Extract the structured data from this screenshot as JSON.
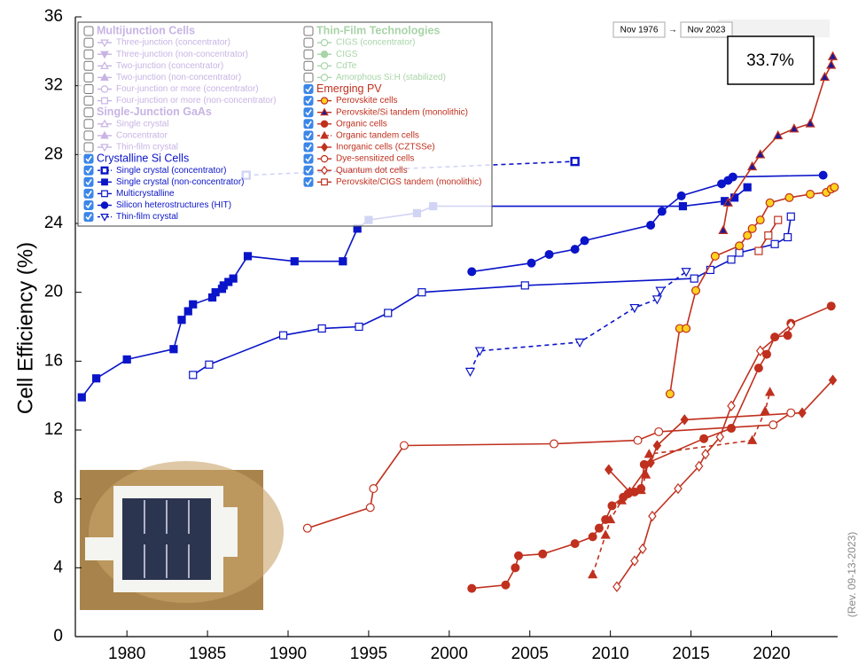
{
  "chart_data": {
    "type": "line",
    "y_label": "Cell Efficiency (%)",
    "revision": "(Rev. 09-13-2023)",
    "range_start": "Nov 1976",
    "range_arrow": "→",
    "range_end": "Nov 2023",
    "record_label": "33.7%",
    "xlim": [
      1976.8,
      2024.1
    ],
    "ylim": [
      0,
      36
    ],
    "xticks": [
      1980,
      1985,
      1990,
      1995,
      2000,
      2005,
      2010,
      2015,
      2020
    ],
    "yticks": [
      0,
      4,
      8,
      12,
      16,
      20,
      24,
      28,
      32,
      36
    ],
    "groups": [
      {
        "name": "Multijunction Cells",
        "color": "#c8b4e4",
        "checked": false,
        "series": [
          {
            "name": "Three-junction (concentrator)",
            "marker": "triangle-down-open",
            "color": "#c8b4e4",
            "x": [],
            "values": []
          },
          {
            "name": "Three-junction (non-concentrator)",
            "marker": "triangle-down",
            "color": "#c8b4e4",
            "x": [],
            "values": []
          },
          {
            "name": "Two-junction (concentrator)",
            "marker": "triangle-open",
            "color": "#c8b4e4",
            "x": [],
            "values": []
          },
          {
            "name": "Two-junction (non-concentrator)",
            "marker": "triangle",
            "color": "#c8b4e4",
            "x": [],
            "values": []
          },
          {
            "name": "Four-junction or more (concentrator)",
            "marker": "circle-open",
            "color": "#c8b4e4",
            "x": [],
            "values": []
          },
          {
            "name": "Four-junction or more (non-concentrator)",
            "marker": "square-open",
            "color": "#c8b4e4",
            "x": [],
            "values": []
          }
        ]
      },
      {
        "name": "Single-Junction GaAs",
        "color": "#c8b4e4",
        "checked": false,
        "series": [
          {
            "name": "Single crystal",
            "marker": "triangle-open",
            "color": "#c8b4e4",
            "x": [],
            "values": []
          },
          {
            "name": "Concentrator",
            "marker": "triangle",
            "color": "#c8b4e4",
            "x": [],
            "values": []
          },
          {
            "name": "Thin-film crystal",
            "marker": "triangle-down-open",
            "color": "#c8b4e4",
            "x": [],
            "values": []
          }
        ]
      },
      {
        "name": "Crystalline Si Cells",
        "color": "#0a14c8",
        "checked": true,
        "series": [
          {
            "name": "Single crystal (concentrator)",
            "marker": "square-dot",
            "color": "#0a14c8",
            "dashed": true,
            "x": [
              1987.4,
              2007.8
            ],
            "values": [
              26.8,
              27.6
            ]
          },
          {
            "name": "Single crystal (non-concentrator)",
            "marker": "square",
            "color": "#0a14c8",
            "x": [
              1977.2,
              1978.1,
              1980.0,
              1982.9,
              1983.4,
              1983.8,
              1984.1,
              1985.3,
              1985.5,
              1985.9,
              1986.0,
              1986.3,
              1986.6,
              1987.5,
              1990.4,
              1993.4,
              1994.3,
              1995.0,
              1998.0,
              1999.0,
              2014.5,
              2017.1,
              2017.7,
              2018.5
            ],
            "values": [
              13.9,
              15.0,
              16.1,
              16.7,
              18.4,
              18.9,
              19.3,
              19.7,
              20.0,
              20.2,
              20.4,
              20.6,
              20.8,
              22.1,
              21.8,
              21.8,
              23.7,
              24.2,
              24.6,
              25.0,
              25.0,
              25.3,
              25.5,
              26.1
            ]
          },
          {
            "name": "Multicrystalline",
            "marker": "square-open",
            "color": "#0a14c8",
            "x": [
              1984.1,
              1985.1,
              1989.7,
              1992.1,
              1994.4,
              1996.2,
              1998.3,
              2004.7,
              2015.2,
              2016.2,
              2017.5,
              2018.0,
              2020.2,
              2021.0,
              2021.2
            ],
            "values": [
              15.2,
              15.8,
              17.5,
              17.9,
              18.0,
              18.8,
              20.0,
              20.4,
              20.8,
              21.3,
              21.9,
              22.3,
              22.8,
              23.2,
              24.4
            ]
          },
          {
            "name": "Silicon heterostructures (HIT)",
            "marker": "circle",
            "color": "#0a14c8",
            "x": [
              2001.4,
              2005.1,
              2006.2,
              2007.8,
              2008.4,
              2012.5,
              2013.2,
              2014.4,
              2016.9,
              2017.3,
              2017.6,
              2023.2
            ],
            "values": [
              21.2,
              21.7,
              22.2,
              22.5,
              23.0,
              23.9,
              24.7,
              25.6,
              26.3,
              26.5,
              26.7,
              26.8
            ]
          },
          {
            "name": "Thin-film crystal",
            "marker": "triangle-down-open",
            "color": "#0a14c8",
            "dashed": true,
            "x": [
              2001.3,
              2001.9,
              2008.1,
              2011.5,
              2012.9,
              2013.1,
              2014.7
            ],
            "values": [
              15.4,
              16.6,
              17.1,
              19.1,
              19.6,
              20.1,
              21.2
            ]
          }
        ]
      },
      {
        "name": "Thin-Film Technologies",
        "color": "#a8d4a8",
        "checked": false,
        "series": [
          {
            "name": "CIGS (concentrator)",
            "marker": "circle-open",
            "color": "#a8d4a8",
            "x": [],
            "values": []
          },
          {
            "name": "CIGS",
            "marker": "circle",
            "color": "#a8d4a8",
            "x": [],
            "values": []
          },
          {
            "name": "CdTe",
            "marker": "circle-open",
            "color": "#a8d4a8",
            "x": [],
            "values": []
          },
          {
            "name": "Amorphous Si:H (stabilized)",
            "marker": "circle-open",
            "color": "#a8d4a8",
            "x": [],
            "values": []
          }
        ]
      },
      {
        "name": "Emerging PV",
        "color": "#c0301e",
        "checked": true,
        "series": [
          {
            "name": "Perovskite cells",
            "marker": "circle",
            "color": "#c0301e",
            "marker_fill": "#ffd21e",
            "x": [
              2013.7,
              2014.3,
              2014.7,
              2015.3,
              2016.5,
              2018.0,
              2018.5,
              2018.8,
              2019.3,
              2019.9,
              2021.1,
              2022.4,
              2023.4,
              2023.7,
              2023.9
            ],
            "values": [
              14.1,
              17.9,
              17.9,
              20.1,
              22.1,
              22.7,
              23.3,
              23.7,
              24.2,
              25.2,
              25.5,
              25.7,
              25.8,
              26.0,
              26.1
            ]
          },
          {
            "name": "Perovskite/Si tandem (monolithic)",
            "marker": "triangle",
            "color": "#c0301e",
            "marker_fill": "#1a1a9a",
            "x": [
              2017.0,
              2017.3,
              2018.8,
              2019.3,
              2020.4,
              2021.4,
              2022.4,
              2023.3,
              2023.7,
              2023.8
            ],
            "values": [
              23.6,
              25.2,
              27.3,
              28.0,
              29.1,
              29.5,
              29.8,
              32.5,
              33.2,
              33.7
            ]
          },
          {
            "name": "Organic cells",
            "marker": "circle",
            "color": "#c0301e",
            "x": [
              2001.4,
              2003.5,
              2004.1,
              2004.3,
              2005.8,
              2007.8,
              2008.9,
              2009.3,
              2009.7,
              2010.1,
              2010.8,
              2011.1,
              2011.5,
              2011.9,
              2012.1,
              2015.8,
              2017.5,
              2019.2,
              2019.7,
              2020.2,
              2021.0,
              2021.2,
              2023.7
            ],
            "values": [
              2.8,
              3.0,
              4.0,
              4.7,
              4.8,
              5.4,
              5.8,
              6.3,
              6.8,
              7.6,
              8.1,
              8.3,
              8.4,
              8.6,
              10.0,
              11.5,
              12.1,
              15.6,
              16.4,
              17.4,
              17.5,
              18.2,
              19.2
            ]
          },
          {
            "name": "Organic tandem cells",
            "marker": "triangle",
            "color": "#c0301e",
            "dashed": true,
            "x": [
              2008.9,
              2009.7,
              2010.0,
              2010.7,
              2011.9,
              2012.2,
              2012.4,
              2018.8,
              2019.6,
              2019.9
            ],
            "values": [
              3.6,
              5.9,
              6.8,
              7.9,
              8.5,
              9.4,
              10.6,
              11.4,
              13.1,
              14.2
            ]
          },
          {
            "name": "Inorganic cells (CZTSSe)",
            "marker": "diamond",
            "color": "#c0301e",
            "x": [
              2009.9,
              2011.2,
              2012.5,
              2012.9,
              2014.6,
              2021.9,
              2023.8
            ],
            "values": [
              9.7,
              8.4,
              10.1,
              11.1,
              12.6,
              13.0,
              14.9
            ]
          },
          {
            "name": "Dye-sensitized cells",
            "marker": "circle-open",
            "color": "#c0301e",
            "x": [
              1991.2,
              1995.1,
              1995.3,
              1997.2,
              2006.5,
              2011.7,
              2013.0,
              2020.1,
              2021.2
            ],
            "values": [
              6.3,
              7.5,
              8.6,
              11.1,
              11.2,
              11.4,
              11.9,
              12.3,
              13.0
            ]
          },
          {
            "name": "Quantum dot cells",
            "marker": "diamond-open",
            "color": "#c0301e",
            "x": [
              2010.4,
              2011.5,
              2012.0,
              2012.6,
              2014.2,
              2015.5,
              2015.9,
              2016.8,
              2017.5,
              2019.3,
              2021.2
            ],
            "values": [
              2.9,
              4.4,
              5.1,
              7.0,
              8.6,
              9.9,
              10.6,
              11.6,
              13.4,
              16.6,
              18.1
            ]
          },
          {
            "name": "Perovskite/CIGS tandem (monolithic)",
            "marker": "square-open",
            "color": "#c0301e",
            "x": [
              2019.2,
              2019.8,
              2020.4
            ],
            "values": [
              22.4,
              23.3,
              24.2
            ]
          }
        ]
      }
    ]
  }
}
